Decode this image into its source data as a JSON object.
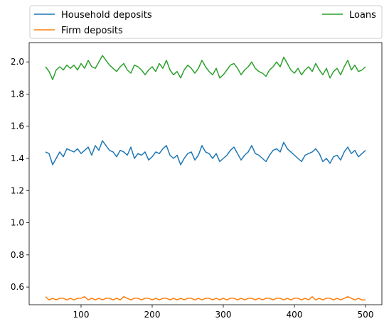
{
  "chart_data": {
    "type": "line",
    "title": "",
    "xlabel": "",
    "ylabel": "",
    "xlim": [
      27,
      523
    ],
    "ylim": [
      0.49,
      2.12
    ],
    "x_ticks": [
      100,
      200,
      300,
      400,
      500
    ],
    "x_tick_labels": [
      "100",
      "200",
      "300",
      "400",
      "500"
    ],
    "y_ticks": [
      0.6,
      0.8,
      1.0,
      1.2,
      1.4,
      1.6,
      1.8,
      2.0
    ],
    "y_tick_labels": [
      "0.6",
      "0.8",
      "1.0",
      "1.2",
      "1.4",
      "1.6",
      "1.8",
      "2.0"
    ],
    "legend_placement": "above-plot",
    "x": [
      50,
      55,
      60,
      65,
      70,
      75,
      80,
      85,
      90,
      95,
      100,
      105,
      110,
      115,
      120,
      125,
      130,
      135,
      140,
      145,
      150,
      155,
      160,
      165,
      170,
      175,
      180,
      185,
      190,
      195,
      200,
      205,
      210,
      215,
      220,
      225,
      230,
      235,
      240,
      245,
      250,
      255,
      260,
      265,
      270,
      275,
      280,
      285,
      290,
      295,
      300,
      305,
      310,
      315,
      320,
      325,
      330,
      335,
      340,
      345,
      350,
      355,
      360,
      365,
      370,
      375,
      380,
      385,
      390,
      395,
      400,
      405,
      410,
      415,
      420,
      425,
      430,
      435,
      440,
      445,
      450,
      455,
      460,
      465,
      470,
      475,
      480,
      485,
      490,
      495,
      500
    ],
    "series": [
      {
        "name": "Household deposits",
        "color": "#1f77b4",
        "values": [
          1.44,
          1.43,
          1.36,
          1.4,
          1.44,
          1.41,
          1.46,
          1.45,
          1.44,
          1.46,
          1.43,
          1.45,
          1.47,
          1.42,
          1.48,
          1.45,
          1.51,
          1.48,
          1.45,
          1.44,
          1.41,
          1.45,
          1.44,
          1.42,
          1.47,
          1.4,
          1.43,
          1.42,
          1.44,
          1.39,
          1.41,
          1.44,
          1.43,
          1.46,
          1.48,
          1.42,
          1.4,
          1.42,
          1.36,
          1.4,
          1.43,
          1.44,
          1.39,
          1.42,
          1.48,
          1.44,
          1.43,
          1.4,
          1.43,
          1.38,
          1.4,
          1.42,
          1.45,
          1.47,
          1.43,
          1.39,
          1.42,
          1.44,
          1.48,
          1.43,
          1.42,
          1.4,
          1.38,
          1.42,
          1.45,
          1.46,
          1.44,
          1.5,
          1.46,
          1.44,
          1.42,
          1.4,
          1.38,
          1.42,
          1.43,
          1.44,
          1.46,
          1.43,
          1.38,
          1.4,
          1.37,
          1.41,
          1.42,
          1.39,
          1.44,
          1.47,
          1.43,
          1.45,
          1.41,
          1.43,
          1.45
        ]
      },
      {
        "name": "Firm deposits",
        "color": "#ff7f0e",
        "values": [
          0.54,
          0.52,
          0.53,
          0.52,
          0.53,
          0.53,
          0.52,
          0.53,
          0.52,
          0.53,
          0.53,
          0.54,
          0.52,
          0.53,
          0.52,
          0.53,
          0.52,
          0.53,
          0.53,
          0.52,
          0.53,
          0.52,
          0.54,
          0.53,
          0.52,
          0.53,
          0.53,
          0.52,
          0.53,
          0.53,
          0.52,
          0.53,
          0.52,
          0.53,
          0.53,
          0.52,
          0.53,
          0.52,
          0.53,
          0.52,
          0.53,
          0.53,
          0.52,
          0.53,
          0.52,
          0.53,
          0.53,
          0.52,
          0.53,
          0.52,
          0.53,
          0.52,
          0.53,
          0.53,
          0.52,
          0.53,
          0.52,
          0.53,
          0.53,
          0.52,
          0.53,
          0.52,
          0.53,
          0.53,
          0.52,
          0.53,
          0.53,
          0.52,
          0.53,
          0.52,
          0.53,
          0.53,
          0.52,
          0.53,
          0.52,
          0.54,
          0.52,
          0.53,
          0.52,
          0.53,
          0.53,
          0.52,
          0.53,
          0.52,
          0.53,
          0.54,
          0.53,
          0.52,
          0.53,
          0.52,
          0.52
        ]
      },
      {
        "name": "Loans",
        "color": "#2ca02c",
        "values": [
          1.97,
          1.94,
          1.89,
          1.95,
          1.97,
          1.95,
          1.98,
          1.96,
          1.98,
          1.95,
          1.99,
          1.96,
          2.01,
          1.97,
          1.96,
          2.0,
          2.04,
          2.01,
          1.98,
          1.96,
          1.94,
          1.97,
          1.99,
          1.95,
          1.93,
          1.98,
          1.97,
          1.95,
          1.92,
          1.95,
          1.97,
          1.94,
          1.99,
          1.96,
          2.01,
          1.95,
          1.92,
          1.94,
          1.9,
          1.95,
          1.98,
          1.96,
          1.93,
          1.96,
          2.01,
          1.97,
          1.94,
          1.92,
          1.96,
          1.9,
          1.92,
          1.95,
          1.98,
          1.99,
          1.96,
          1.92,
          1.95,
          1.97,
          2.0,
          1.96,
          1.94,
          1.93,
          1.91,
          1.95,
          1.97,
          2.0,
          1.97,
          2.03,
          1.99,
          1.95,
          1.93,
          1.96,
          1.92,
          1.95,
          1.97,
          1.94,
          1.99,
          1.95,
          1.92,
          1.96,
          1.9,
          1.94,
          1.96,
          1.92,
          1.97,
          2.01,
          1.95,
          1.98,
          1.94,
          1.95,
          1.97
        ]
      }
    ]
  }
}
